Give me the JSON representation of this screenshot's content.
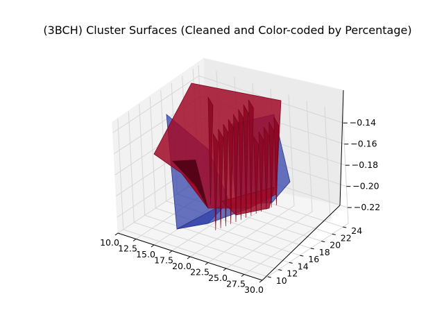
{
  "chart_data": {
    "type": "surface3d",
    "title": "(3BCH) Cluster Surfaces (Cleaned and Color-coded by Percentage)",
    "xlabel": "",
    "ylabel": "",
    "zlabel": "",
    "x_ticks": [
      "10.0",
      "12.5",
      "15.0",
      "17.5",
      "20.0",
      "22.5",
      "25.0",
      "27.5",
      "30.0"
    ],
    "y_ticks": [
      "10",
      "12",
      "14",
      "16",
      "18",
      "20",
      "22",
      "24"
    ],
    "z_ticks": [
      "−0.14",
      "−0.16",
      "−0.18",
      "−0.20",
      "−0.22"
    ],
    "xlim": [
      10,
      30
    ],
    "ylim": [
      9,
      25
    ],
    "zlim": [
      -0.235,
      -0.13
    ],
    "grid": true,
    "series": [
      {
        "color": "#2f3fa8"
      },
      {
        "color": "#a10a28"
      }
    ]
  }
}
